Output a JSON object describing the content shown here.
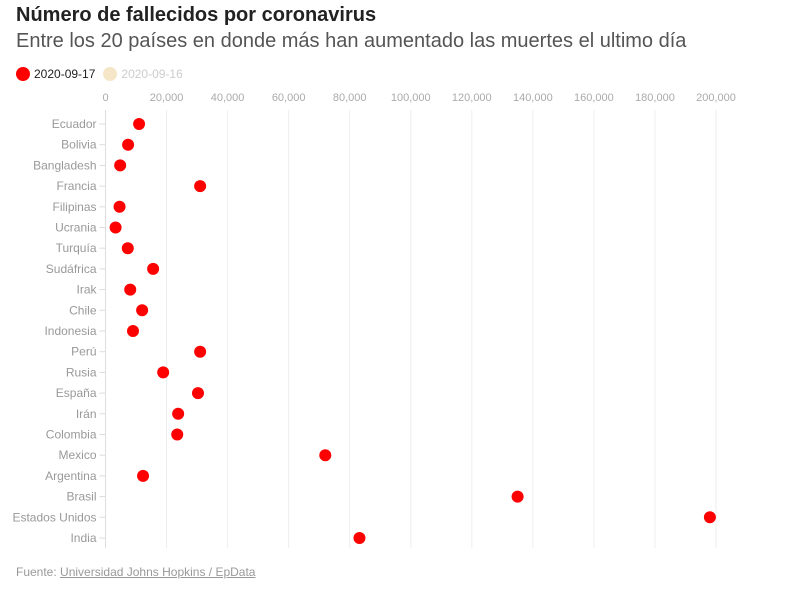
{
  "chart_data": {
    "type": "scatter",
    "title": "Número de fallecidos por coronavirus",
    "subtitle": "Entre los 20 países en donde más han aumentado las muertes el ultimo día",
    "legend": [
      {
        "name": "2020-09-17",
        "color": "#ff0000"
      },
      {
        "name": "2020-09-16",
        "color": "#f5e6c8"
      }
    ],
    "legend_placement": "top-left",
    "xlim": [
      0,
      200000
    ],
    "x_ticks": [
      "0",
      "20,000",
      "40,000",
      "60,000",
      "80,000",
      "100,000",
      "120,000",
      "140,000",
      "160,000",
      "180,000",
      "200,000"
    ],
    "grid": true,
    "categories": [
      "Ecuador",
      "Bolivia",
      "Bangladesh",
      "Francia",
      "Filipinas",
      "Ucrania",
      "Turquía",
      "Sudáfrica",
      "Irak",
      "Chile",
      "Indonesia",
      "Perú",
      "Rusia",
      "España",
      "Irán",
      "Colombia",
      "Mexico",
      "Argentina",
      "Brasil",
      "Estados Unidos",
      "India"
    ],
    "series": [
      {
        "name": "2020-09-17",
        "values": [
          11000,
          7400,
          4800,
          31000,
          4600,
          3300,
          7300,
          15600,
          8100,
          12000,
          9000,
          31000,
          18900,
          30300,
          23800,
          23500,
          72000,
          12300,
          135000,
          198000,
          83200
        ]
      }
    ]
  },
  "footer": {
    "source_label": "Fuente:",
    "source_link": "Universidad Johns Hopkins / EpData"
  }
}
